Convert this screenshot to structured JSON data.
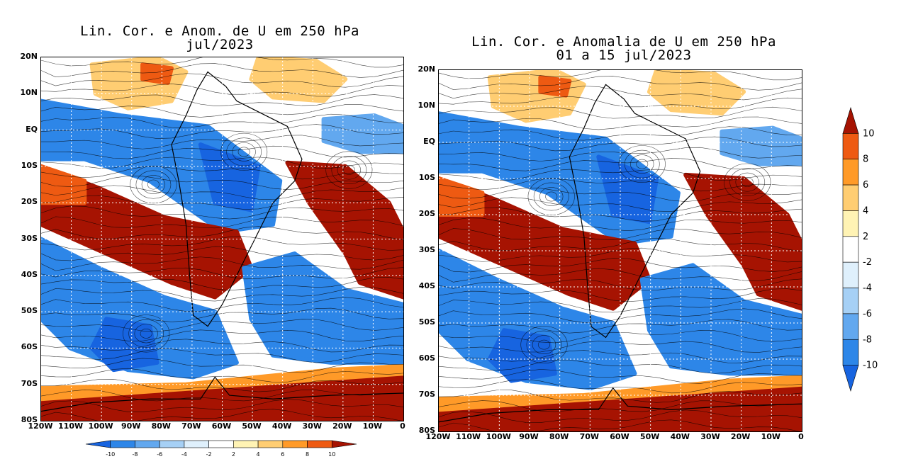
{
  "panels": [
    {
      "title_line1": "Lin. Cor. e Anom. de U em 250 hPa",
      "title_line2": "jul/2023",
      "lat_labels": [
        "20N",
        "10N",
        "EQ",
        "10S",
        "20S",
        "30S",
        "40S",
        "50S",
        "60S",
        "70S",
        "80S"
      ],
      "lon_labels": [
        "120W",
        "110W",
        "100W",
        "90W",
        "80W",
        "70W",
        "60W",
        "50W",
        "40W",
        "30W",
        "20W",
        "10W",
        "0"
      ]
    },
    {
      "title_line1": "Lin. Cor. e Anomalia de U em 250 hPa",
      "title_line2": "01 a 15 jul/2023",
      "lat_labels": [
        "20N",
        "10N",
        "EQ",
        "10S",
        "20S",
        "30S",
        "40S",
        "50S",
        "60S",
        "70S",
        "80S"
      ],
      "lon_labels": [
        "120W",
        "110W",
        "100W",
        "90W",
        "80W",
        "70W",
        "60W",
        "50W",
        "40W",
        "30W",
        "20W",
        "10W",
        "0"
      ]
    }
  ],
  "colorbar": {
    "levels": [
      "-10",
      "-8",
      "-6",
      "-4",
      "-2",
      "2",
      "4",
      "6",
      "8",
      "10"
    ],
    "colors": [
      "#1764e0",
      "#2d86e8",
      "#62a8ef",
      "#a6d0f5",
      "#dff0fc",
      "#ffffff",
      "#fff3b4",
      "#ffcd72",
      "#ff9a28",
      "#ee5a12",
      "#a61302"
    ]
  }
}
